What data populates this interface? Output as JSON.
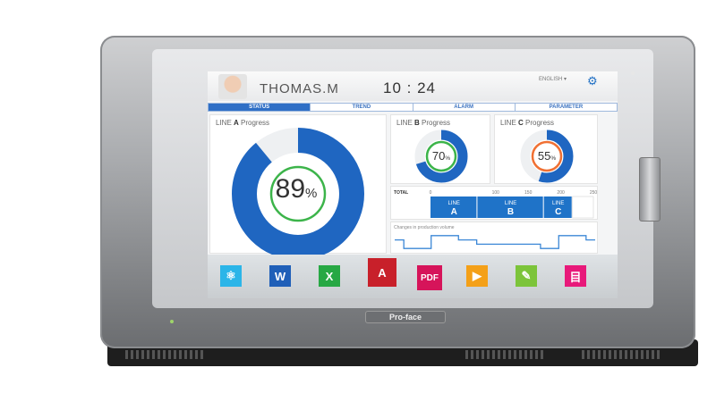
{
  "header": {
    "user_name": "THOMAS.M",
    "time": "10 : 24",
    "language": "ENGLISH ▾",
    "settings_icon": "gear-icon"
  },
  "tabs": [
    {
      "label": "STATUS",
      "active": true
    },
    {
      "label": "TREND"
    },
    {
      "label": "ALARM"
    },
    {
      "label": "PARAMETER"
    }
  ],
  "line_a": {
    "title_pre": "LINE ",
    "title_bold": "A",
    "title_post": " Progress",
    "value": "89",
    "unit": "%",
    "fraction": 0.89,
    "ring_color": "#1f66c1",
    "inner_color": "#3cb44a"
  },
  "line_b": {
    "title_pre": "LINE ",
    "title_bold": "B",
    "title_post": " Progress",
    "value": "70",
    "unit": "%",
    "fraction": 0.7,
    "inner_color": "#3cb44a"
  },
  "line_c": {
    "title_pre": "LINE ",
    "title_bold": "C",
    "title_post": " Progress",
    "value": "55",
    "unit": "%",
    "fraction": 0.55,
    "inner_color": "#f07033"
  },
  "chart_data": [
    {
      "type": "bar",
      "orientation": "horizontal-stacked",
      "label": "TOTAL",
      "xticks": [
        "0",
        "100",
        "150",
        "200",
        "250"
      ],
      "xtick_values": [
        0,
        100,
        150,
        200,
        250
      ],
      "xlim": [
        0,
        250
      ],
      "series": [
        {
          "name": "LINE A",
          "value": 72
        },
        {
          "name": "LINE B",
          "value": 102
        },
        {
          "name": "LINE C",
          "value": 44
        }
      ],
      "color": "#1f73c8"
    },
    {
      "type": "line",
      "title": "Changes in production volume",
      "step": true,
      "values": [
        3,
        1,
        1,
        1,
        4,
        4,
        4,
        3,
        3,
        2,
        2,
        2,
        2,
        2,
        2,
        2,
        1,
        1,
        4,
        4,
        4,
        3
      ],
      "ylim": [
        0,
        5
      ],
      "color": "#3b87d6"
    }
  ],
  "dock": [
    {
      "name": "network-app",
      "icon": "atom-icon",
      "color": "#2bb5e8",
      "label": ""
    },
    {
      "name": "word",
      "icon": "word-icon",
      "color": "#1f5fb8",
      "label": "W"
    },
    {
      "name": "excel",
      "icon": "excel-icon",
      "color": "#27a844",
      "label": "X"
    },
    {
      "name": "access",
      "icon": "access-icon",
      "color": "#c8202a",
      "label": "A"
    },
    {
      "name": "pdf",
      "icon": "pdf-icon",
      "color": "#d6145a",
      "label": "PDF"
    },
    {
      "name": "video",
      "icon": "play-icon",
      "color": "#f4a018",
      "label": "▶"
    },
    {
      "name": "editor",
      "icon": "pencil-icon",
      "color": "#7cc43a",
      "label": "✎"
    },
    {
      "name": "ladder",
      "icon": "ladder-icon",
      "color": "#e8197a",
      "label": "目"
    }
  ],
  "brand": "Pro-face"
}
